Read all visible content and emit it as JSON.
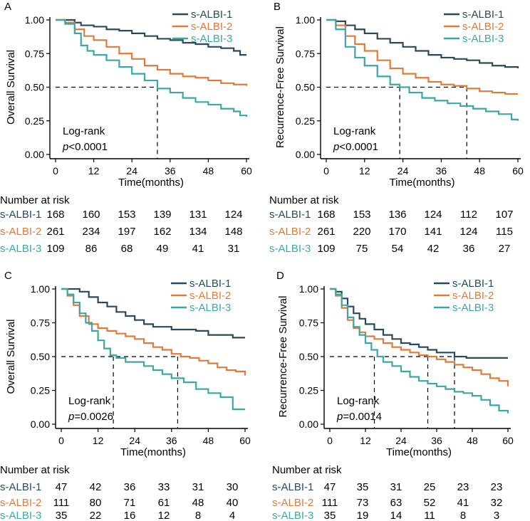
{
  "colors": {
    "s1": "#2a4a5c",
    "s2": "#e07a3a",
    "s3": "#3aa8a8",
    "axis": "#000000"
  },
  "risk_header": "Number at risk",
  "chart_data": [
    {
      "panel": "A",
      "type": "line",
      "title": "",
      "xlabel": "Time(months)",
      "ylabel": "Overall Survival",
      "xlim": [
        0,
        60
      ],
      "ylim": [
        0,
        1
      ],
      "xticks": [
        "0",
        "12",
        "24",
        "36",
        "48",
        "60"
      ],
      "yticks": [
        "0.00",
        "0.25",
        "0.50",
        "0.75",
        "1.00"
      ],
      "test_label": "Log-rank",
      "p_text": "<0.0001",
      "legend_position": "top-right",
      "median_lines": [
        32
      ],
      "series": [
        {
          "name": "s-ALBI-1",
          "color_key": "s1",
          "x": [
            0,
            3,
            6,
            8,
            12,
            16,
            20,
            24,
            28,
            32,
            36,
            40,
            44,
            48,
            52,
            56,
            58,
            60
          ],
          "y": [
            1,
            1,
            0.98,
            0.96,
            0.95,
            0.93,
            0.92,
            0.9,
            0.88,
            0.86,
            0.85,
            0.83,
            0.82,
            0.8,
            0.79,
            0.77,
            0.74,
            0.74
          ]
        },
        {
          "name": "s-ALBI-2",
          "color_key": "s2",
          "x": [
            0,
            3,
            6,
            9,
            12,
            16,
            20,
            24,
            28,
            32,
            36,
            40,
            44,
            48,
            52,
            56,
            60
          ],
          "y": [
            1,
            0.98,
            0.93,
            0.88,
            0.85,
            0.8,
            0.75,
            0.71,
            0.66,
            0.63,
            0.6,
            0.58,
            0.57,
            0.55,
            0.53,
            0.52,
            0.51
          ]
        },
        {
          "name": "s-ALBI-3",
          "color_key": "s3",
          "x": [
            0,
            3,
            6,
            8,
            10,
            12,
            16,
            20,
            24,
            28,
            32,
            36,
            40,
            44,
            48,
            52,
            56,
            58,
            60
          ],
          "y": [
            1,
            0.97,
            0.9,
            0.81,
            0.77,
            0.74,
            0.7,
            0.65,
            0.6,
            0.55,
            0.49,
            0.46,
            0.42,
            0.39,
            0.37,
            0.34,
            0.32,
            0.29,
            0.28
          ]
        }
      ],
      "risk": {
        "s-ALBI-1": [
          "168",
          "160",
          "153",
          "139",
          "131",
          "124"
        ],
        "s-ALBI-2": [
          "261",
          "234",
          "197",
          "162",
          "134",
          "148"
        ],
        "s-ALBI-3": [
          "109",
          "86",
          "68",
          "49",
          "41",
          "31"
        ]
      }
    },
    {
      "panel": "B",
      "type": "line",
      "title": "",
      "xlabel": "Time(months)",
      "ylabel": "Recurrence-Free Survival",
      "xlim": [
        0,
        60
      ],
      "ylim": [
        0,
        1
      ],
      "xticks": [
        "0",
        "12",
        "24",
        "36",
        "48",
        "60"
      ],
      "yticks": [
        "0.00",
        "0.25",
        "0.50",
        "0.75",
        "1.00"
      ],
      "test_label": "Log-rank",
      "p_text": "<0.0001",
      "legend_position": "top-right",
      "median_lines": [
        23,
        44
      ],
      "series": [
        {
          "name": "s-ALBI-1",
          "color_key": "s1",
          "x": [
            0,
            3,
            6,
            9,
            12,
            16,
            20,
            24,
            28,
            32,
            36,
            40,
            44,
            48,
            52,
            56,
            60
          ],
          "y": [
            1,
            0.99,
            0.96,
            0.93,
            0.9,
            0.86,
            0.83,
            0.8,
            0.77,
            0.74,
            0.72,
            0.71,
            0.7,
            0.68,
            0.66,
            0.65,
            0.64
          ]
        },
        {
          "name": "s-ALBI-2",
          "color_key": "s2",
          "x": [
            0,
            3,
            6,
            9,
            12,
            16,
            20,
            24,
            28,
            32,
            36,
            40,
            44,
            48,
            52,
            56,
            60
          ],
          "y": [
            1,
            0.96,
            0.88,
            0.82,
            0.77,
            0.7,
            0.64,
            0.6,
            0.57,
            0.54,
            0.52,
            0.51,
            0.49,
            0.47,
            0.46,
            0.45,
            0.45
          ]
        },
        {
          "name": "s-ALBI-3",
          "color_key": "s3",
          "x": [
            0,
            3,
            6,
            9,
            12,
            16,
            20,
            23,
            26,
            30,
            34,
            38,
            42,
            46,
            50,
            54,
            58,
            60
          ],
          "y": [
            1,
            0.93,
            0.8,
            0.72,
            0.66,
            0.58,
            0.52,
            0.5,
            0.46,
            0.42,
            0.4,
            0.38,
            0.36,
            0.34,
            0.32,
            0.3,
            0.26,
            0.25
          ]
        }
      ],
      "risk": {
        "s-ALBI-1": [
          "168",
          "153",
          "136",
          "124",
          "112",
          "107"
        ],
        "s-ALBI-2": [
          "261",
          "220",
          "170",
          "141",
          "124",
          "115"
        ],
        "s-ALBI-3": [
          "109",
          "75",
          "54",
          "42",
          "36",
          "27"
        ]
      }
    },
    {
      "panel": "C",
      "type": "line",
      "title": "",
      "xlabel": "Time(months)",
      "ylabel": "Overall Survival",
      "xlim": [
        0,
        60
      ],
      "ylim": [
        0,
        1
      ],
      "xticks": [
        "0",
        "12",
        "24",
        "36",
        "48",
        "60"
      ],
      "yticks": [
        "0.00",
        "0.25",
        "0.50",
        "0.75",
        "1.00"
      ],
      "test_label": "Log-rank",
      "p_text": "=0.0026",
      "legend_position": "top-right",
      "median_lines": [
        17,
        38
      ],
      "series": [
        {
          "name": "s-ALBI-1",
          "color_key": "s1",
          "x": [
            0,
            3,
            6,
            9,
            12,
            15,
            18,
            21,
            24,
            27,
            30,
            33,
            36,
            40,
            44,
            48,
            52,
            56,
            60
          ],
          "y": [
            1,
            1,
            0.98,
            0.94,
            0.9,
            0.87,
            0.83,
            0.8,
            0.77,
            0.74,
            0.72,
            0.72,
            0.7,
            0.7,
            0.69,
            0.66,
            0.66,
            0.64,
            0.64
          ]
        },
        {
          "name": "s-ALBI-2",
          "color_key": "s2",
          "x": [
            0,
            2,
            4,
            6,
            9,
            12,
            15,
            18,
            21,
            24,
            27,
            30,
            33,
            36,
            39,
            42,
            45,
            48,
            51,
            54,
            57,
            60
          ],
          "y": [
            1,
            0.95,
            0.88,
            0.8,
            0.74,
            0.71,
            0.69,
            0.67,
            0.65,
            0.63,
            0.6,
            0.57,
            0.55,
            0.52,
            0.5,
            0.49,
            0.47,
            0.45,
            0.42,
            0.4,
            0.39,
            0.36
          ]
        },
        {
          "name": "s-ALBI-3",
          "color_key": "s3",
          "x": [
            0,
            2,
            4,
            6,
            8,
            10,
            12,
            14,
            16,
            18,
            21,
            24,
            27,
            30,
            33,
            36,
            40,
            44,
            48,
            52,
            56,
            60
          ],
          "y": [
            1,
            0.96,
            0.9,
            0.82,
            0.75,
            0.69,
            0.62,
            0.56,
            0.51,
            0.49,
            0.46,
            0.46,
            0.43,
            0.4,
            0.37,
            0.34,
            0.31,
            0.26,
            0.23,
            0.2,
            0.11,
            0.11
          ]
        }
      ],
      "risk": {
        "s-ALBI-1": [
          "47",
          "42",
          "36",
          "33",
          "31",
          "30"
        ],
        "s-ALBI-2": [
          "111",
          "80",
          "71",
          "61",
          "48",
          "40"
        ],
        "s-ALBI-3": [
          "35",
          "22",
          "16",
          "12",
          "8",
          "4"
        ]
      }
    },
    {
      "panel": "D",
      "type": "line",
      "title": "",
      "xlabel": "Time(months)",
      "ylabel": "Recurrence-Free Survival",
      "xlim": [
        0,
        60
      ],
      "ylim": [
        0,
        1
      ],
      "xticks": [
        "0",
        "12",
        "24",
        "36",
        "48",
        "60"
      ],
      "yticks": [
        "0.00",
        "0.25",
        "0.50",
        "0.75",
        "1.00"
      ],
      "test_label": "Log-rank",
      "p_text": "=0.0014",
      "legend_position": "top-right",
      "median_lines": [
        15,
        33,
        42
      ],
      "series": [
        {
          "name": "s-ALBI-1",
          "color_key": "s1",
          "x": [
            0,
            2,
            4,
            6,
            8,
            10,
            12,
            15,
            18,
            21,
            24,
            27,
            30,
            33,
            36,
            40,
            42,
            46,
            50,
            54,
            60
          ],
          "y": [
            1,
            0.98,
            0.93,
            0.87,
            0.82,
            0.78,
            0.74,
            0.7,
            0.66,
            0.63,
            0.6,
            0.59,
            0.57,
            0.55,
            0.53,
            0.53,
            0.5,
            0.49,
            0.49,
            0.49,
            0.49
          ]
        },
        {
          "name": "s-ALBI-2",
          "color_key": "s2",
          "x": [
            0,
            2,
            4,
            6,
            8,
            10,
            12,
            15,
            18,
            21,
            24,
            27,
            30,
            33,
            36,
            39,
            42,
            45,
            48,
            51,
            54,
            57,
            60
          ],
          "y": [
            1,
            0.95,
            0.86,
            0.77,
            0.71,
            0.68,
            0.65,
            0.63,
            0.6,
            0.57,
            0.55,
            0.53,
            0.51,
            0.5,
            0.48,
            0.46,
            0.44,
            0.42,
            0.4,
            0.37,
            0.34,
            0.32,
            0.28
          ]
        },
        {
          "name": "s-ALBI-3",
          "color_key": "s3",
          "x": [
            0,
            2,
            4,
            6,
            8,
            10,
            12,
            14,
            16,
            18,
            21,
            24,
            27,
            30,
            33,
            36,
            39,
            42,
            45,
            48,
            51,
            54,
            57,
            60
          ],
          "y": [
            1,
            0.96,
            0.88,
            0.79,
            0.72,
            0.66,
            0.6,
            0.55,
            0.5,
            0.46,
            0.43,
            0.39,
            0.35,
            0.32,
            0.3,
            0.28,
            0.26,
            0.24,
            0.23,
            0.21,
            0.18,
            0.14,
            0.1,
            0.08
          ]
        }
      ],
      "risk": {
        "s-ALBI-1": [
          "47",
          "35",
          "31",
          "25",
          "23",
          "23"
        ],
        "s-ALBI-2": [
          "111",
          "73",
          "63",
          "52",
          "41",
          "32"
        ],
        "s-ALBI-3": [
          "35",
          "19",
          "14",
          "11",
          "8",
          "3"
        ]
      }
    }
  ]
}
